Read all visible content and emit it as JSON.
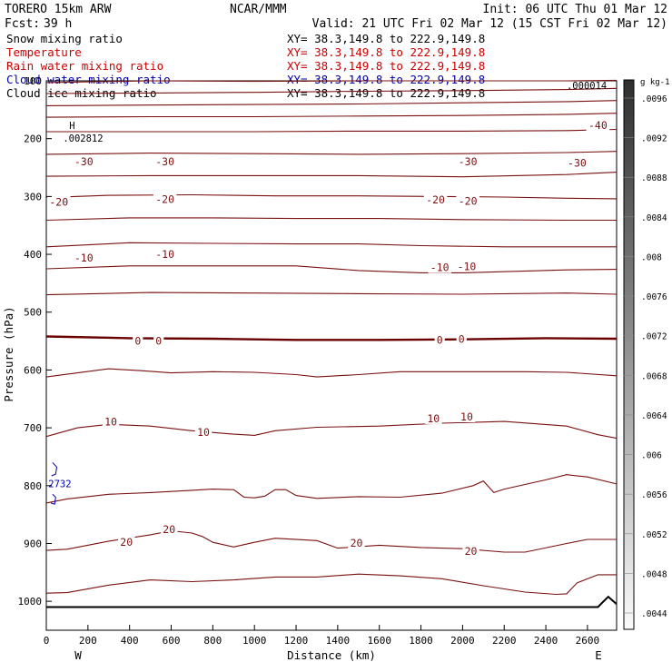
{
  "header": {
    "model": "TORERO   15km ARW",
    "center": "NCAR/MMM",
    "init": "Init: 06 UTC Thu 01 Mar 12",
    "fcst_label": "Fcst:",
    "fcst_value": "39 h",
    "valid": "Valid: 21 UTC Fri 02 Mar 12 (15 CST Fri 02 Mar 12)"
  },
  "fields": [
    {
      "name": "Snow mixing ratio",
      "xy": "XY=  38.3,149.8 to 222.9,149.8",
      "color": "#000000"
    },
    {
      "name": "Temperature",
      "xy": "XY=  38.3,149.8 to 222.9,149.8",
      "color": "#cc0000"
    },
    {
      "name": "Rain water mixing ratio",
      "xy": "XY=  38.3,149.8 to 222.9,149.8",
      "color": "#cc0000"
    },
    {
      "name": "Cloud water mixing ratio",
      "xy": "XY=  38.3,149.8 to 222.9,149.8",
      "color": "#0000aa"
    },
    {
      "name": "Cloud ice mixing ratio",
      "xy": "XY=  38.3,149.8 to 222.9,149.8",
      "color": "#000000"
    }
  ],
  "chart_data": {
    "type": "contour",
    "xlabel": "Distance (km)",
    "ylabel": "Pressure (hPa)",
    "x_ticks": [
      "0",
      "200",
      "400",
      "600",
      "800",
      "1000",
      "1200",
      "1400",
      "1600",
      "1800",
      "2000",
      "2200",
      "2400",
      "2600"
    ],
    "y_ticks": [
      "100",
      "200",
      "300",
      "400",
      "500",
      "600",
      "700",
      "800",
      "900",
      "1000"
    ],
    "xlim": [
      0,
      2740
    ],
    "ylim": [
      1050,
      100
    ],
    "endpoints": {
      "left": "W",
      "right": "E"
    },
    "isotherm_color": "#7a1010",
    "freezing_level_color": "#6a0000",
    "isotherms": [
      {
        "p": [
          [
            0,
            103
          ],
          [
            500,
            100
          ],
          [
            1000,
            101
          ],
          [
            1500,
            100
          ],
          [
            2000,
            100
          ],
          [
            2500,
            100
          ],
          [
            2740,
            99
          ]
        ]
      },
      {
        "p": [
          [
            0,
            122
          ],
          [
            500,
            121
          ],
          [
            1000,
            120
          ],
          [
            1500,
            118
          ],
          [
            2000,
            117
          ],
          [
            2500,
            115
          ],
          [
            2740,
            113
          ]
        ]
      },
      {
        "p": [
          [
            0,
            143
          ],
          [
            500,
            142
          ],
          [
            1000,
            141
          ],
          [
            1500,
            140
          ],
          [
            2000,
            138
          ],
          [
            2500,
            136
          ],
          [
            2740,
            134
          ]
        ]
      },
      {
        "p": [
          [
            0,
            163
          ],
          [
            500,
            162
          ],
          [
            1000,
            162
          ],
          [
            1500,
            161
          ],
          [
            2000,
            160
          ],
          [
            2500,
            158
          ],
          [
            2740,
            156
          ]
        ]
      },
      {
        "p": [
          [
            0,
            188
          ],
          [
            500,
            188
          ],
          [
            1000,
            188
          ],
          [
            1500,
            187
          ],
          [
            2000,
            187
          ],
          [
            2500,
            186
          ],
          [
            2740,
            184
          ]
        ]
      },
      {
        "p": [
          [
            0,
            227
          ],
          [
            500,
            225
          ],
          [
            1000,
            226
          ],
          [
            1500,
            227
          ],
          [
            2000,
            226
          ],
          [
            2500,
            224
          ],
          [
            2740,
            222
          ]
        ]
      },
      {
        "p": [
          [
            0,
            265
          ],
          [
            500,
            264
          ],
          [
            1000,
            264
          ],
          [
            1500,
            264
          ],
          [
            2000,
            266
          ],
          [
            2500,
            262
          ],
          [
            2740,
            258
          ]
        ]
      },
      {
        "p": [
          [
            0,
            302
          ],
          [
            300,
            298
          ],
          [
            700,
            297
          ],
          [
            1100,
            299
          ],
          [
            1500,
            299
          ],
          [
            1900,
            300
          ],
          [
            2200,
            301
          ],
          [
            2500,
            303
          ],
          [
            2740,
            304
          ]
        ]
      },
      {
        "p": [
          [
            0,
            341
          ],
          [
            400,
            337
          ],
          [
            800,
            337
          ],
          [
            1200,
            338
          ],
          [
            1600,
            338
          ],
          [
            2000,
            340
          ],
          [
            2500,
            341
          ],
          [
            2740,
            341
          ]
        ]
      },
      {
        "p": [
          [
            0,
            387
          ],
          [
            400,
            380
          ],
          [
            800,
            381
          ],
          [
            1200,
            382
          ],
          [
            1500,
            382
          ],
          [
            1800,
            385
          ],
          [
            2200,
            387
          ],
          [
            2740,
            387
          ]
        ]
      },
      {
        "p": [
          [
            0,
            425
          ],
          [
            400,
            420
          ],
          [
            800,
            420
          ],
          [
            1200,
            420
          ],
          [
            1500,
            428
          ],
          [
            1800,
            432
          ],
          [
            2000,
            432
          ],
          [
            2500,
            427
          ],
          [
            2740,
            426
          ]
        ]
      },
      {
        "p": [
          [
            0,
            470
          ],
          [
            500,
            466
          ],
          [
            1000,
            467
          ],
          [
            1500,
            468
          ],
          [
            2000,
            469
          ],
          [
            2500,
            467
          ],
          [
            2740,
            469
          ]
        ]
      },
      {
        "p": [
          [
            0,
            542
          ],
          [
            400,
            545
          ],
          [
            800,
            546
          ],
          [
            1200,
            548
          ],
          [
            1600,
            548
          ],
          [
            2000,
            547
          ],
          [
            2400,
            545
          ],
          [
            2740,
            546
          ]
        ],
        "bold": true
      },
      {
        "p": [
          [
            0,
            612
          ],
          [
            150,
            605
          ],
          [
            300,
            598
          ],
          [
            450,
            601
          ],
          [
            600,
            605
          ],
          [
            800,
            603
          ],
          [
            1000,
            604
          ],
          [
            1200,
            608
          ],
          [
            1300,
            612
          ],
          [
            1500,
            608
          ],
          [
            1700,
            603
          ],
          [
            2000,
            603
          ],
          [
            2300,
            603
          ],
          [
            2500,
            604
          ],
          [
            2740,
            610
          ]
        ]
      },
      {
        "p": [
          [
            0,
            715
          ],
          [
            150,
            700
          ],
          [
            300,
            694
          ],
          [
            500,
            697
          ],
          [
            700,
            705
          ],
          [
            900,
            711
          ],
          [
            1000,
            713
          ],
          [
            1100,
            705
          ],
          [
            1300,
            699
          ],
          [
            1600,
            697
          ],
          [
            1900,
            692
          ],
          [
            2200,
            689
          ],
          [
            2500,
            697
          ],
          [
            2650,
            712
          ],
          [
            2740,
            718
          ]
        ]
      },
      {
        "p": [
          [
            0,
            830
          ],
          [
            100,
            823
          ],
          [
            300,
            815
          ],
          [
            500,
            812
          ],
          [
            700,
            808
          ],
          [
            800,
            806
          ],
          [
            900,
            807
          ],
          [
            950,
            820
          ],
          [
            1000,
            821
          ],
          [
            1050,
            818
          ],
          [
            1100,
            807
          ],
          [
            1150,
            807
          ],
          [
            1200,
            817
          ],
          [
            1300,
            822
          ],
          [
            1500,
            819
          ],
          [
            1700,
            820
          ],
          [
            1900,
            813
          ],
          [
            2050,
            800
          ],
          [
            2100,
            792
          ],
          [
            2150,
            812
          ],
          [
            2200,
            806
          ],
          [
            2400,
            790
          ],
          [
            2500,
            781
          ],
          [
            2600,
            785
          ],
          [
            2740,
            797
          ]
        ]
      },
      {
        "p": [
          [
            0,
            912
          ],
          [
            100,
            910
          ],
          [
            300,
            896
          ],
          [
            500,
            885
          ],
          [
            600,
            878
          ],
          [
            700,
            882
          ],
          [
            750,
            888
          ],
          [
            800,
            898
          ],
          [
            900,
            906
          ],
          [
            1000,
            898
          ],
          [
            1100,
            891
          ],
          [
            1300,
            895
          ],
          [
            1400,
            908
          ],
          [
            1600,
            903
          ],
          [
            1800,
            907
          ],
          [
            2000,
            909
          ],
          [
            2200,
            915
          ],
          [
            2300,
            915
          ],
          [
            2500,
            900
          ],
          [
            2600,
            893
          ],
          [
            2740,
            893
          ]
        ]
      },
      {
        "p": [
          [
            0,
            986
          ],
          [
            100,
            985
          ],
          [
            300,
            972
          ],
          [
            500,
            963
          ],
          [
            700,
            966
          ],
          [
            900,
            963
          ],
          [
            1100,
            958
          ],
          [
            1300,
            958
          ],
          [
            1500,
            953
          ],
          [
            1700,
            956
          ],
          [
            1900,
            961
          ],
          [
            2100,
            973
          ],
          [
            2300,
            984
          ],
          [
            2450,
            988
          ],
          [
            2500,
            987
          ],
          [
            2550,
            968
          ],
          [
            2650,
            954
          ],
          [
            2740,
            954
          ]
        ]
      }
    ],
    "isotherm_labels": [
      {
        "text": "-40",
        "x": 2650,
        "y": 177
      },
      {
        "text": "-30",
        "x": 180,
        "y": 240
      },
      {
        "text": "-30",
        "x": 570,
        "y": 240
      },
      {
        "text": "-30",
        "x": 2025,
        "y": 240
      },
      {
        "text": "-30",
        "x": 2550,
        "y": 242
      },
      {
        "text": "-20",
        "x": 60,
        "y": 310
      },
      {
        "text": "-20",
        "x": 570,
        "y": 305
      },
      {
        "text": "-20",
        "x": 1870,
        "y": 306
      },
      {
        "text": "-20",
        "x": 2025,
        "y": 308
      },
      {
        "text": "-10",
        "x": 180,
        "y": 406
      },
      {
        "text": "-10",
        "x": 570,
        "y": 400
      },
      {
        "text": "-10",
        "x": 1890,
        "y": 423
      },
      {
        "text": "-10",
        "x": 2020,
        "y": 421
      },
      {
        "text": "0",
        "x": 440,
        "y": 550
      },
      {
        "text": "0",
        "x": 540,
        "y": 550
      },
      {
        "text": "0",
        "x": 1890,
        "y": 548
      },
      {
        "text": "0",
        "x": 1995,
        "y": 547
      },
      {
        "text": "10",
        "x": 310,
        "y": 690
      },
      {
        "text": "10",
        "x": 755,
        "y": 708
      },
      {
        "text": "10",
        "x": 1860,
        "y": 684
      },
      {
        "text": "10",
        "x": 2020,
        "y": 681
      },
      {
        "text": "20",
        "x": 385,
        "y": 898
      },
      {
        "text": "20",
        "x": 590,
        "y": 876
      },
      {
        "text": "20",
        "x": 1490,
        "y": 899
      },
      {
        "text": "20",
        "x": 2040,
        "y": 913
      }
    ],
    "surface": {
      "p": [
        [
          0,
          1010
        ],
        [
          2650,
          1010
        ],
        [
          2700,
          992
        ],
        [
          2740,
          1005
        ]
      ]
    },
    "annotations": [
      {
        "text": "H",
        "x": 110,
        "y": 183,
        "color": "#000000"
      },
      {
        "text": ".002812",
        "x": 80,
        "y": 205,
        "color": "#000000"
      },
      {
        "text": ".000014",
        "x": 2500,
        "y": 114,
        "color": "#000000"
      },
      {
        "text": "2732",
        "x": 10,
        "y": 803,
        "color": "#0000aa"
      }
    ],
    "cloud_water_contours": [
      {
        "p": [
          [
            30,
            760
          ],
          [
            50,
            768
          ],
          [
            45,
            780
          ],
          [
            25,
            783
          ]
        ]
      },
      {
        "p": [
          [
            30,
            815
          ],
          [
            45,
            820
          ],
          [
            40,
            832
          ],
          [
            22,
            830
          ]
        ]
      }
    ],
    "colorbar": {
      "unit": "g kg-1",
      "ticks": [
        ".0096",
        ".0092",
        ".0088",
        ".0084",
        ".008",
        ".0076",
        ".0072",
        ".0068",
        ".0064",
        ".006",
        ".0056",
        ".0052",
        ".0048",
        ".0044"
      ],
      "gradient_top": "#2e2e2e",
      "gradient_bottom": "#fafafa"
    }
  }
}
